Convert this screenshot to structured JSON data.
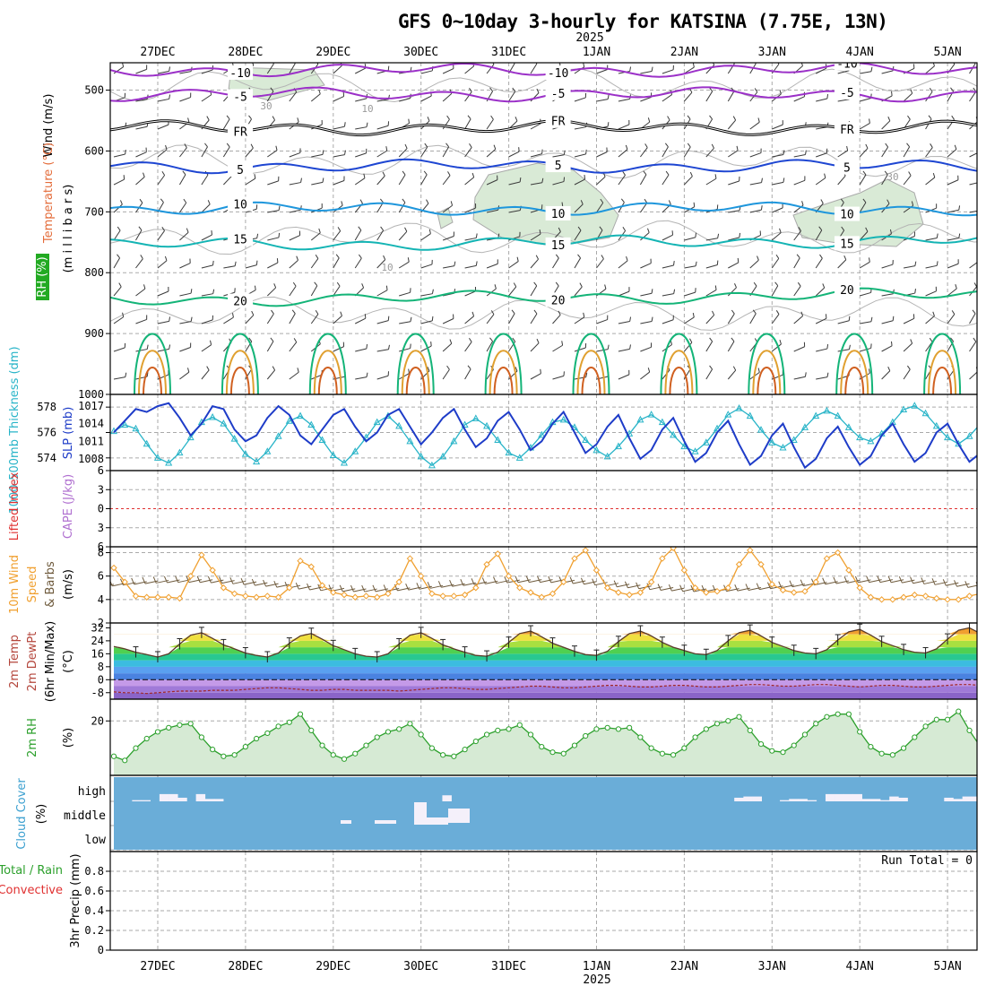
{
  "title": "GFS 0~10day 3-hourly for KATSINA (7.75E, 13N)",
  "time_axis": {
    "dates": [
      "27DEC",
      "28DEC",
      "29DEC",
      "30DEC",
      "31DEC",
      "1JAN",
      "2JAN",
      "3JAN",
      "4JAN",
      "5JAN"
    ],
    "year_label": "2025",
    "start": "26DEC 12Z",
    "step_hours": 3
  },
  "panel_labels": {
    "upper_wind": "Wind (m/s)",
    "upper_temp": "Temperature (°C)",
    "upper_rh": "RH (%)",
    "upper_pressure": "(m i l l i b a r s)",
    "thickness": "1000-500mb Thickness (dm)",
    "slp": "SLP (mb)",
    "lifted_index": "Lifted Index",
    "cape": "CAPE (J/kg)",
    "wind10m_a": "10m Wind",
    "wind10m_b": "Speed",
    "wind10m_c": "& Barbs",
    "wind10m_unit": "(m/s)",
    "temp2m_a": "2m Temp",
    "temp2m_b": "2m DewPt",
    "temp2m_c": "(6hr Min/Max)",
    "temp2m_unit": "(°C)",
    "rh2m": "2m RH",
    "rh2m_unit": "(%)",
    "cloud": "Cloud Cover",
    "cloud_unit": "(%)",
    "precip_a": "Total / Rain",
    "precip_b": "Convective",
    "precip_unit": "3hr Precip (mm)",
    "run_total": "Run Total = 0"
  },
  "colors": {
    "thickness": "#28b4c8",
    "slp": "#1e3cc8",
    "wind10m": "#f0a030",
    "barb": "#6e5a3c",
    "rh2m": "#2ca02c",
    "cloud_fill": "#6aadd8",
    "rh_fill": "#d6ead4"
  },
  "chart_data": [
    {
      "panel": "upper-air",
      "type": "contour",
      "yaxis": "pressure (mb)",
      "yticks": [
        500,
        600,
        700,
        800,
        900,
        1000
      ],
      "ylim": [
        455,
        1000
      ],
      "temperature_contours": [
        {
          "value": -10,
          "label": "-10",
          "pressure": 467,
          "color": "#9b30c8"
        },
        {
          "value": -5,
          "label": "-5",
          "pressure": 507,
          "color": "#9b30c8"
        },
        {
          "value": 0,
          "label": "FR",
          "pressure": 562,
          "color": "#000000"
        },
        {
          "value": 5,
          "label": "5",
          "pressure": 625,
          "color": "#1e46d2"
        },
        {
          "value": 10,
          "label": "10",
          "pressure": 695,
          "color": "#1e96dc"
        },
        {
          "value": 15,
          "label": "15",
          "pressure": 755,
          "color": "#14b4b4"
        },
        {
          "value": 20,
          "label": "20",
          "pressure": 845,
          "color": "#14b478"
        }
      ],
      "rh_labels": [
        "30",
        "10"
      ]
    },
    {
      "panel": "thickness-slp",
      "type": "line",
      "yticks_thickness": [
        574,
        576,
        578
      ],
      "yticks_slp": [
        1008,
        1011,
        1014,
        1017
      ],
      "thickness_ylim": [
        573,
        579
      ],
      "slp_ylim": [
        1006,
        1019
      ],
      "series": [
        {
          "name": "1000-500mb Thickness (dm)",
          "marker": "triangle",
          "values": [
            576.1,
            576.6,
            576.3,
            575.1,
            574.0,
            573.6,
            574.4,
            575.6,
            576.8,
            577.2,
            576.7,
            575.5,
            574.3,
            573.7,
            574.5,
            575.7,
            576.9,
            577.3,
            576.6,
            575.4,
            574.2,
            573.6,
            574.5,
            575.6,
            576.8,
            577.3,
            576.5,
            575.3,
            574.1,
            573.4,
            574.1,
            575.3,
            576.6,
            577.1,
            576.5,
            575.4,
            574.4,
            574.0,
            574.8,
            575.8,
            576.8,
            577.0,
            576.4,
            575.4,
            574.6,
            574.1,
            574.9,
            575.9,
            577.0,
            577.4,
            576.8,
            575.8,
            574.9,
            574.5,
            575.2,
            576.3,
            577.4,
            577.9,
            577.3,
            576.2,
            575.2,
            574.8,
            575.4,
            576.4,
            577.3,
            577.7,
            577.3,
            576.4,
            575.6,
            575.3,
            575.9,
            576.8,
            577.8,
            578.1,
            577.5,
            576.5,
            575.6,
            575.1,
            575.7,
            576.7,
            577.9,
            578.4,
            577.9,
            577.0,
            576.2,
            575.8,
            576.3,
            577.2,
            578.1,
            578.4,
            577.6,
            576.8
          ]
        },
        {
          "name": "SLP (mb)",
          "values": [
            1012.5,
            1014.5,
            1016.5,
            1016.0,
            1017.0,
            1017.5,
            1015.0,
            1012.0,
            1014.0,
            1017.0,
            1016.5,
            1013.0,
            1011.0,
            1012.0,
            1015.0,
            1017.0,
            1015.5,
            1012.0,
            1010.5,
            1013.0,
            1015.5,
            1016.5,
            1013.5,
            1011.0,
            1012.5,
            1015.5,
            1016.5,
            1013.5,
            1010.5,
            1012.5,
            1015.0,
            1016.5,
            1013.0,
            1010.0,
            1011.5,
            1014.5,
            1016.0,
            1013.0,
            1009.5,
            1011.0,
            1014.0,
            1016.0,
            1012.5,
            1009.0,
            1010.5,
            1013.5,
            1015.5,
            1011.5,
            1008.0,
            1009.5,
            1013.0,
            1015.0,
            1011.0,
            1007.5,
            1009.0,
            1012.5,
            1014.5,
            1010.5,
            1007.0,
            1008.5,
            1012.0,
            1014.0,
            1010.0,
            1006.5,
            1008.0,
            1011.5,
            1013.5,
            1010.0,
            1007.0,
            1008.5,
            1012.0,
            1014.0,
            1010.5,
            1007.5,
            1009.0,
            1012.5,
            1014.0,
            1010.5,
            1007.5,
            1009.0,
            1012.0,
            1013.5,
            1010.0,
            1007.0,
            1008.5,
            1011.5,
            1012.5,
            1009.5,
            1008.0,
            1009.5,
            1010.5,
            1011.0
          ]
        }
      ]
    },
    {
      "panel": "lifted-index-cape",
      "type": "line",
      "yticks": [
        "6",
        "3",
        "0",
        "3",
        "6"
      ],
      "ylim": [
        -6,
        6
      ],
      "zero_line": 0,
      "values": []
    },
    {
      "panel": "wind10m",
      "type": "line",
      "name": "10m Wind Speed",
      "yticks": [
        2,
        4,
        6,
        8
      ],
      "ylim": [
        2,
        8.5
      ],
      "values": [
        6.7,
        5.5,
        4.3,
        4.2,
        4.2,
        4.2,
        4.1,
        6.0,
        7.8,
        6.5,
        5.0,
        4.5,
        4.3,
        4.2,
        4.3,
        4.2,
        5.0,
        7.3,
        6.8,
        5.2,
        4.6,
        4.4,
        4.2,
        4.3,
        4.2,
        4.5,
        5.5,
        7.5,
        6.0,
        4.5,
        4.3,
        4.3,
        4.4,
        5.0,
        7.0,
        7.9,
        6.0,
        5.0,
        4.6,
        4.2,
        4.5,
        5.5,
        7.5,
        8.2,
        6.5,
        5.0,
        4.6,
        4.4,
        4.6,
        5.5,
        7.5,
        8.4,
        6.5,
        5.0,
        4.6,
        4.7,
        5.0,
        7.0,
        8.2,
        7.0,
        5.3,
        4.8,
        4.6,
        4.7,
        5.5,
        7.5,
        8.0,
        6.5,
        5.0,
        4.2,
        4.0,
        4.0,
        4.2,
        4.4,
        4.3,
        4.1,
        4.0,
        4.0,
        4.3,
        4.5,
        4.6,
        4.5,
        4.3,
        4.2,
        3.8,
        3.8,
        2.3,
        3.1,
        2.8,
        3.1,
        3.6,
        4.1
      ]
    },
    {
      "panel": "temp2m",
      "type": "area",
      "yticks": [
        -8,
        0,
        8,
        16,
        24,
        32
      ],
      "ylim": [
        -12,
        35
      ],
      "temperature": [
        20.5,
        19.0,
        17.0,
        15.5,
        14.0,
        16.0,
        22.0,
        27.5,
        29.0,
        25.5,
        21.5,
        19.0,
        16.5,
        15.0,
        14.0,
        16.5,
        22.5,
        27.0,
        28.5,
        25.0,
        21.0,
        18.5,
        16.0,
        14.5,
        14.0,
        16.0,
        22.0,
        27.5,
        29.0,
        25.5,
        21.5,
        19.0,
        17.0,
        15.0,
        14.5,
        17.0,
        23.0,
        28.5,
        30.0,
        26.5,
        22.5,
        20.0,
        17.5,
        15.5,
        15.0,
        17.5,
        23.5,
        28.5,
        30.0,
        27.0,
        23.0,
        20.0,
        18.0,
        16.0,
        15.5,
        18.0,
        24.0,
        29.0,
        30.5,
        27.0,
        23.0,
        20.5,
        18.0,
        16.5,
        16.0,
        18.5,
        24.5,
        29.5,
        31.0,
        27.5,
        23.5,
        21.0,
        18.5,
        17.0,
        16.5,
        19.0,
        25.0,
        30.5,
        32.0,
        28.5,
        24.5,
        21.5,
        19.5,
        17.5,
        17.5,
        20.0,
        26.0,
        31.5,
        33.0,
        29.5,
        25.5,
        22.5
      ],
      "dewpoint": [
        -7.5,
        -8.0,
        -8.0,
        -8.5,
        -8.0,
        -7.5,
        -7.0,
        -7.0,
        -7.0,
        -6.5,
        -6.5,
        -6.5,
        -6.0,
        -5.5,
        -5.0,
        -5.0,
        -5.5,
        -6.0,
        -6.5,
        -6.5,
        -6.0,
        -6.0,
        -6.5,
        -6.5,
        -6.5,
        -6.5,
        -7.0,
        -6.5,
        -6.0,
        -5.5,
        -5.0,
        -5.0,
        -5.5,
        -6.0,
        -6.0,
        -5.5,
        -5.0,
        -4.5,
        -4.0,
        -4.0,
        -4.5,
        -5.0,
        -5.0,
        -4.5,
        -4.0,
        -3.5,
        -3.5,
        -4.0,
        -4.5,
        -4.5,
        -4.0,
        -3.5,
        -3.5,
        -4.0,
        -4.5,
        -4.5,
        -4.0,
        -3.5,
        -3.0,
        -3.0,
        -3.5,
        -4.0,
        -4.0,
        -3.5,
        -3.0,
        -3.0,
        -3.5,
        -4.0,
        -4.5,
        -4.0,
        -3.5,
        -3.5,
        -4.0,
        -4.5,
        -4.5,
        -4.0,
        -3.5,
        -3.0,
        -3.0,
        -3.5,
        -4.0,
        -4.0,
        -3.5,
        -3.0,
        -3.0,
        -3.5,
        -4.0,
        -4.5,
        -4.5,
        -4.0,
        -3.5,
        -3.5
      ]
    },
    {
      "panel": "rh2m",
      "type": "area",
      "name": "2m RH",
      "yticks": [
        20
      ],
      "ylim": [
        0,
        28
      ],
      "values": [
        7.0,
        5.5,
        10.0,
        13.5,
        16.0,
        17.5,
        18.5,
        19.0,
        14.0,
        9.5,
        7.0,
        7.5,
        10.5,
        13.5,
        15.5,
        18.0,
        19.5,
        22.5,
        16.5,
        11.0,
        7.5,
        6.0,
        8.0,
        11.0,
        14.0,
        16.0,
        17.0,
        19.0,
        15.0,
        10.0,
        7.5,
        7.0,
        9.5,
        12.5,
        15.0,
        16.5,
        17.0,
        18.5,
        15.0,
        10.5,
        8.5,
        8.0,
        11.0,
        14.5,
        17.0,
        17.5,
        17.0,
        17.5,
        14.0,
        10.0,
        8.0,
        7.5,
        10.0,
        14.0,
        17.0,
        19.0,
        20.0,
        21.5,
        16.5,
        11.5,
        9.0,
        8.5,
        11.0,
        15.0,
        19.0,
        21.5,
        22.5,
        22.5,
        16.0,
        10.5,
        8.0,
        7.5,
        10.0,
        14.0,
        18.0,
        20.5,
        20.5,
        23.5,
        16.5,
        10.5,
        8.0,
        7.0,
        9.5,
        13.0,
        16.0,
        17.5,
        18.0,
        16.0,
        10.5,
        8.0,
        7.0,
        10.0
      ]
    },
    {
      "panel": "cloud",
      "type": "bar",
      "ytick_labels": [
        "high",
        "middle",
        "low"
      ],
      "ylim": [
        0,
        100
      ],
      "high": [
        0,
        0,
        5,
        5,
        0,
        30,
        30,
        15,
        0,
        30,
        10,
        10,
        0,
        0,
        0,
        0,
        0,
        0,
        0,
        0,
        0,
        0,
        0,
        0,
        0,
        0,
        0,
        0,
        0,
        0,
        0,
        0,
        0,
        0,
        0,
        0,
        25,
        0,
        0,
        0,
        0,
        0,
        0,
        0,
        0,
        0,
        0,
        0,
        0,
        0,
        0,
        0,
        0,
        0,
        0,
        0,
        0,
        0,
        0,
        0,
        0,
        0,
        0,
        0,
        0,
        0,
        0,
        0,
        15,
        20,
        20,
        0,
        0,
        5,
        10,
        10,
        5,
        0,
        30,
        30,
        30,
        30,
        10,
        10,
        5,
        20,
        15,
        0,
        0,
        0,
        0,
        15,
        10,
        20,
        20
      ],
      "middle": [
        0,
        0,
        0,
        0,
        0,
        0,
        0,
        0,
        0,
        0,
        0,
        0,
        0,
        0,
        0,
        0,
        0,
        0,
        0,
        0,
        0,
        0,
        0,
        0,
        0,
        0,
        0,
        0,
        0,
        0,
        0,
        0,
        0,
        0,
        0,
        0,
        0,
        0,
        0,
        0,
        0,
        0,
        0,
        0,
        0,
        0,
        0,
        0,
        0,
        0,
        0,
        0,
        0,
        0,
        0,
        0,
        0,
        0,
        0,
        0,
        0,
        0,
        0,
        0,
        0,
        0,
        0,
        0,
        0,
        0,
        0,
        0,
        0,
        0,
        0,
        0,
        0,
        0,
        0,
        0,
        0,
        0,
        0,
        0,
        0,
        0,
        0,
        0,
        0,
        0,
        0,
        0,
        0,
        0,
        0
      ],
      "low": [
        0,
        0,
        0,
        0,
        0,
        0,
        0,
        0,
        0,
        0,
        0,
        0,
        0,
        0,
        0,
        0,
        0,
        0,
        0,
        0,
        0,
        0,
        0,
        0,
        0,
        0,
        0,
        0,
        0,
        0,
        0,
        0,
        0,
        0,
        0,
        0,
        0,
        0,
        0,
        0,
        0,
        0,
        0,
        0,
        0,
        0,
        0,
        0,
        0,
        0,
        0,
        0,
        0,
        0,
        0,
        0,
        0,
        0,
        0,
        0,
        0,
        0,
        0,
        0,
        0,
        0,
        0,
        0,
        0,
        0,
        0,
        0,
        0,
        0,
        0,
        0,
        0,
        0,
        0,
        0,
        0,
        0,
        0,
        0,
        0,
        0,
        0,
        0,
        0,
        0,
        0,
        0,
        0,
        0,
        0
      ]
    },
    {
      "panel": "precip",
      "type": "bar",
      "yticks": [
        "0",
        "0.2",
        "0.4",
        "0.6",
        "0.8"
      ],
      "ylim": [
        0,
        1.0
      ],
      "values": []
    }
  ]
}
